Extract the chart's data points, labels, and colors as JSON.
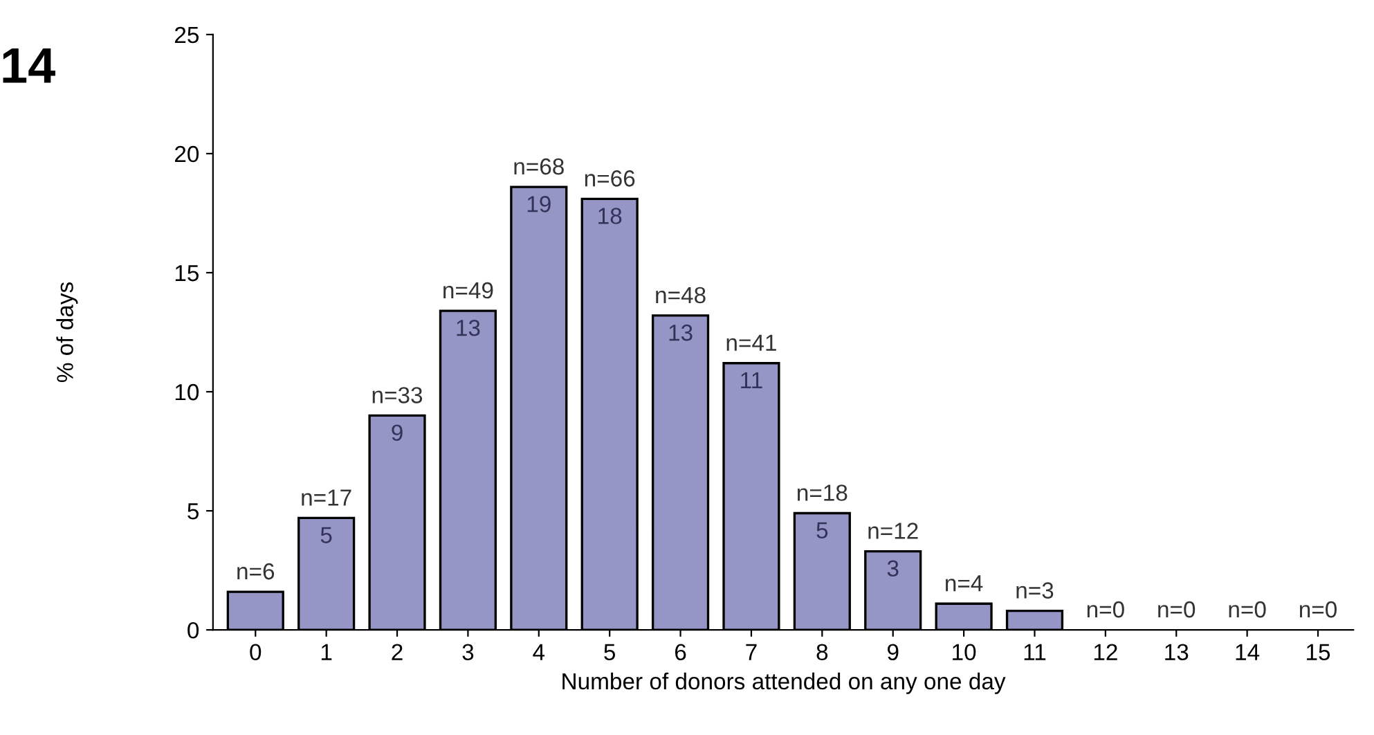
{
  "chart_data": {
    "type": "bar",
    "xlabel": "Number of donors attended on any one day",
    "ylabel": "% of days",
    "categories": [
      "0",
      "1",
      "2",
      "3",
      "4",
      "5",
      "6",
      "7",
      "8",
      "9",
      "10",
      "11",
      "12",
      "13",
      "14",
      "15"
    ],
    "values": [
      1.6,
      4.7,
      9.0,
      13.4,
      18.6,
      18.1,
      13.2,
      11.2,
      4.9,
      3.3,
      1.1,
      0.8,
      0,
      0,
      0,
      0
    ],
    "value_labels": [
      null,
      "5",
      "9",
      "13",
      "19",
      "18",
      "13",
      "11",
      "5",
      "3",
      null,
      null,
      null,
      null,
      null,
      null
    ],
    "color": "#9696c6",
    "ylim": [
      0,
      25
    ],
    "yticks": [
      0,
      5,
      10,
      15,
      20,
      25
    ],
    "grid": false,
    "annotations": [
      "14",
      {
        "text": "n=6",
        "x": "0",
        "y": 1.6
      },
      {
        "text": "n=17",
        "x": "1",
        "y": 4.7
      },
      {
        "text": "n=33",
        "x": "2",
        "y": 9.0
      },
      {
        "text": "n=49",
        "x": "3",
        "y": 13.4
      },
      {
        "text": "n=68",
        "x": "4",
        "y": 18.6
      },
      {
        "text": "n=66",
        "x": "5",
        "y": 18.1
      },
      {
        "text": "n=48",
        "x": "6",
        "y": 13.2
      },
      {
        "text": "n=41",
        "x": "7",
        "y": 11.2
      },
      {
        "text": "n=18",
        "x": "8",
        "y": 4.9
      },
      {
        "text": "n=12",
        "x": "9",
        "y": 3.3
      },
      {
        "text": "n=4",
        "x": "10",
        "y": 1.1
      },
      {
        "text": "n=3",
        "x": "11",
        "y": 0.8
      },
      {
        "text": "n=0",
        "x": "12",
        "y": 0
      },
      {
        "text": "n=0",
        "x": "13",
        "y": 0
      },
      {
        "text": "n=0",
        "x": "14",
        "y": 0
      },
      {
        "text": "n=0",
        "x": "15",
        "y": 0
      }
    ]
  }
}
